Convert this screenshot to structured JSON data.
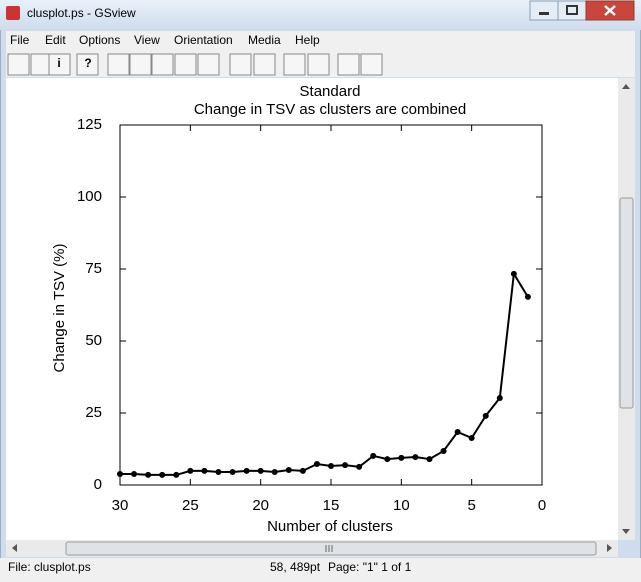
{
  "window": {
    "title": "clusplot.ps - GSview"
  },
  "menu": [
    "File",
    "Edit",
    "Options",
    "View",
    "Orientation",
    "Media",
    "Help"
  ],
  "toolbar": {
    "info": "i",
    "help": "?"
  },
  "chart_data": {
    "type": "line",
    "title": "Standard",
    "subtitle": "Change in TSV as clusters are combined",
    "x_label": "Number of clusters",
    "y_label": "Change in TSV (%)",
    "x": [
      30,
      29,
      28,
      27,
      26,
      25,
      24,
      23,
      22,
      21,
      20,
      19,
      18,
      17,
      16,
      15,
      14,
      13,
      12,
      11,
      10,
      9,
      8,
      7,
      6,
      5,
      4,
      3,
      2,
      1
    ],
    "values": [
      3.8,
      3.8,
      3.5,
      3.5,
      3.5,
      4.9,
      4.9,
      4.5,
      4.5,
      4.9,
      4.9,
      4.5,
      5.2,
      4.9,
      7.3,
      6.6,
      6.9,
      6.3,
      10.1,
      9.0,
      9.4,
      9.7,
      9.0,
      11.8,
      18.4,
      16.3,
      24,
      30.2,
      73.3,
      65.3
    ],
    "color": "#000000",
    "marker": "circle",
    "xlim": [
      30,
      0
    ],
    "ylim": [
      0,
      125
    ],
    "xticks": [
      30,
      25,
      20,
      15,
      10,
      5,
      0
    ],
    "yticks": [
      0,
      25,
      50,
      75,
      100,
      125
    ]
  },
  "status": {
    "file": "File: clusplot.ps",
    "position": "58, 489pt",
    "page": "Page: \"1\"  1 of 1"
  }
}
